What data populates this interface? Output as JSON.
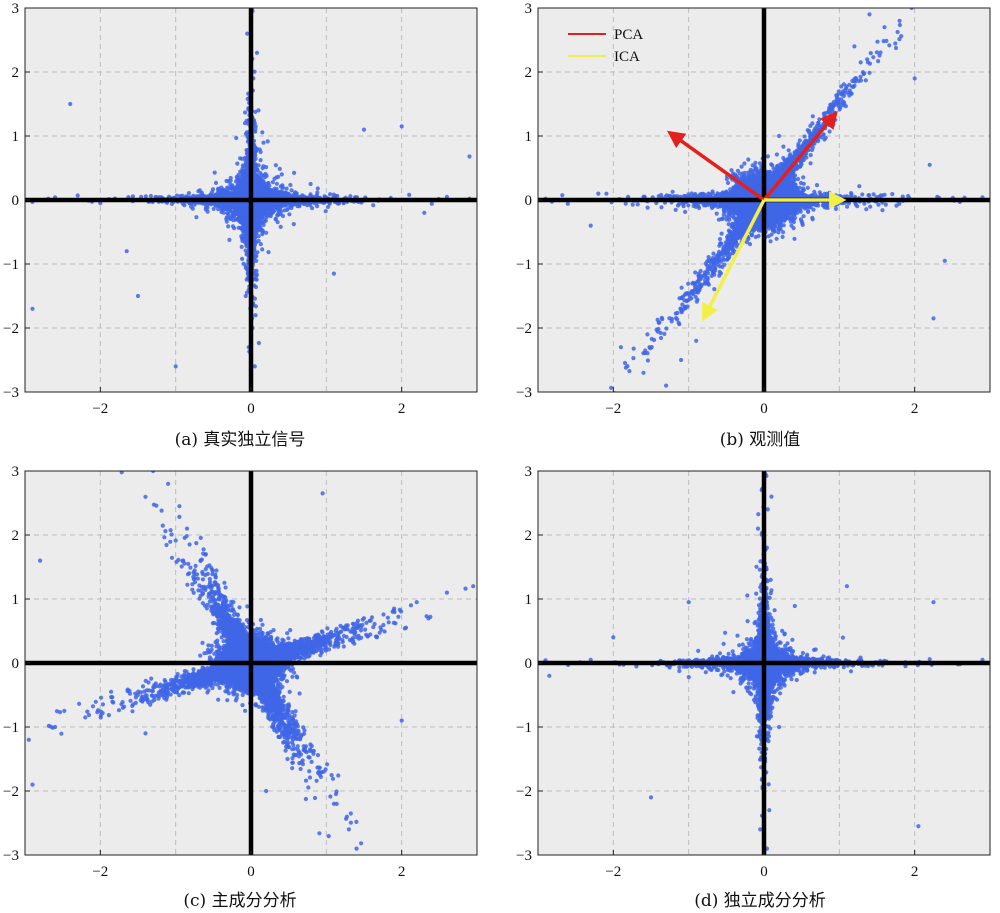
{
  "chart_data": [
    {
      "id": "a",
      "type": "scatter",
      "caption": "(a) 真实独立信号",
      "xlim": [
        -3,
        3
      ],
      "ylim": [
        -3,
        3
      ],
      "xticks": [
        -2,
        0,
        2
      ],
      "yticks": [
        -3,
        -2,
        -1,
        0,
        1,
        2,
        3
      ],
      "grid": true,
      "pattern": "independent-axes",
      "arms": [],
      "points": [
        [
          0.02,
          2.95
        ],
        [
          -0.05,
          2.6
        ],
        [
          0.08,
          2.3
        ],
        [
          0.03,
          1.9
        ],
        [
          -0.02,
          1.6
        ],
        [
          0.1,
          1.4
        ],
        [
          -0.08,
          1.2
        ],
        [
          0.05,
          -2.6
        ],
        [
          -0.03,
          -2.3
        ],
        [
          0.02,
          -2.0
        ],
        [
          0.06,
          -1.8
        ],
        [
          -0.07,
          -1.5
        ],
        [
          2.6,
          0.05
        ],
        [
          2.9,
          0.02
        ],
        [
          2.4,
          -0.06
        ],
        [
          2.1,
          0.08
        ],
        [
          -2.6,
          0.04
        ],
        [
          -2.9,
          -0.03
        ],
        [
          -2.3,
          0.07
        ],
        [
          -2.0,
          -0.05
        ],
        [
          -2.4,
          1.5
        ],
        [
          -2.9,
          -1.7
        ],
        [
          2.9,
          0.68
        ],
        [
          2.0,
          1.15
        ],
        [
          1.5,
          1.1
        ],
        [
          -1.5,
          -1.5
        ],
        [
          -1.0,
          -2.6
        ],
        [
          1.1,
          -1.15
        ],
        [
          -1.65,
          -0.8
        ],
        [
          2.3,
          -0.2
        ]
      ],
      "colors": {
        "points": "#3f66e6",
        "axes_lines": "#000000",
        "background": "#ececec",
        "grid": "#bdbdbd"
      }
    },
    {
      "id": "b",
      "type": "scatter",
      "caption": "(b) 观测值",
      "xlim": [
        -3,
        3
      ],
      "ylim": [
        -3,
        3
      ],
      "xticks": [
        -2,
        0,
        2
      ],
      "yticks": [
        -3,
        -2,
        -1,
        0,
        1,
        2,
        3
      ],
      "grid": true,
      "pattern": "observed-mix",
      "arms": [
        [
          1.0,
          1.5
        ],
        [
          1.0,
          0.0
        ]
      ],
      "points": [
        [
          1.4,
          2.9
        ],
        [
          1.6,
          2.7
        ],
        [
          1.2,
          2.4
        ],
        [
          1.8,
          2.8
        ],
        [
          -1.3,
          -2.9
        ],
        [
          -1.6,
          -2.7
        ],
        [
          -1.1,
          -2.5
        ],
        [
          -0.9,
          -2.2
        ],
        [
          -1.9,
          -2.3
        ],
        [
          2.3,
          0.05
        ],
        [
          2.6,
          -0.03
        ],
        [
          2.9,
          0.04
        ],
        [
          2.2,
          0.55
        ],
        [
          2.4,
          -0.95
        ],
        [
          2.25,
          -1.85
        ],
        [
          -1.6,
          0.05
        ],
        [
          -2.2,
          0.1
        ],
        [
          -2.9,
          0.02
        ],
        [
          -2.3,
          -0.4
        ],
        [
          0.2,
          1.0
        ],
        [
          2.0,
          1.9
        ],
        [
          0.8,
          1.3
        ]
      ],
      "vectors": {
        "PCA": [
          [
            0.95,
            1.35
          ],
          [
            -1.25,
            1.05
          ]
        ],
        "ICA": [
          [
            1.05,
            0.0
          ],
          [
            -0.8,
            -1.85
          ]
        ]
      },
      "legend": {
        "location": "top-left",
        "entries": [
          {
            "name": "PCA",
            "color": "#e3201b"
          },
          {
            "name": "ICA",
            "color": "#f2f046"
          }
        ]
      },
      "colors": {
        "points": "#3f66e6",
        "axes_lines": "#000000",
        "background": "#ececec",
        "grid": "#bdbdbd"
      }
    },
    {
      "id": "c",
      "type": "scatter",
      "caption": "(c) 主成分分析",
      "xlim": [
        -3,
        3
      ],
      "ylim": [
        -3,
        3
      ],
      "xticks": [
        -2,
        0,
        2
      ],
      "yticks": [
        -3,
        -2,
        -1,
        0,
        1,
        2,
        3
      ],
      "grid": true,
      "pattern": "pca-rotated",
      "arms": [
        [
          -0.4,
          1.0
        ],
        [
          1.0,
          0.3
        ],
        [
          0.55,
          -1.0
        ],
        [
          -1.0,
          -0.4
        ]
      ],
      "points": [
        [
          -1.3,
          3.0
        ],
        [
          -1.1,
          2.8
        ],
        [
          -0.95,
          2.45
        ],
        [
          -0.85,
          2.1
        ],
        [
          -0.6,
          1.7
        ],
        [
          2.95,
          1.2
        ],
        [
          2.6,
          1.1
        ],
        [
          2.2,
          0.95
        ],
        [
          1.9,
          0.85
        ],
        [
          1.5,
          0.7
        ],
        [
          0.9,
          -1.7
        ],
        [
          1.1,
          -2.2
        ],
        [
          1.3,
          -2.6
        ],
        [
          1.4,
          -2.9
        ],
        [
          0.7,
          -1.3
        ],
        [
          -2.95,
          -1.2
        ],
        [
          -2.6,
          -1.0
        ],
        [
          -2.2,
          -0.85
        ],
        [
          -1.7,
          -0.7
        ],
        [
          -2.9,
          -1.9
        ],
        [
          -2.8,
          1.6
        ],
        [
          -1.4,
          -1.1
        ],
        [
          0.95,
          2.65
        ],
        [
          -0.9,
          1.6
        ],
        [
          0.2,
          -2.0
        ],
        [
          2.0,
          -0.9
        ]
      ],
      "colors": {
        "points": "#3f66e6",
        "axes_lines": "#000000",
        "background": "#ececec",
        "grid": "#bdbdbd"
      }
    },
    {
      "id": "d",
      "type": "scatter",
      "caption": "(d) 独立成分分析",
      "xlim": [
        -3,
        3
      ],
      "ylim": [
        -3,
        3
      ],
      "xticks": [
        -2,
        0,
        2
      ],
      "yticks": [
        -3,
        -2,
        -1,
        0,
        1,
        2,
        3
      ],
      "grid": true,
      "pattern": "independent-axes",
      "arms": [],
      "points": [
        [
          0.02,
          2.95
        ],
        [
          -0.03,
          2.7
        ],
        [
          0.05,
          2.4
        ],
        [
          0.1,
          2.6
        ],
        [
          -0.08,
          2.1
        ],
        [
          0.04,
          -2.9
        ],
        [
          -0.05,
          -2.6
        ],
        [
          0.07,
          -2.3
        ],
        [
          0.0,
          -2.05
        ],
        [
          2.9,
          0.05
        ],
        [
          2.6,
          -0.02
        ],
        [
          2.2,
          0.06
        ],
        [
          -2.9,
          0.04
        ],
        [
          -2.6,
          -0.03
        ],
        [
          -2.3,
          0.05
        ],
        [
          -2.0,
          0.4
        ],
        [
          2.25,
          0.95
        ],
        [
          1.1,
          1.2
        ],
        [
          -1.0,
          0.95
        ],
        [
          -1.5,
          -2.1
        ],
        [
          2.05,
          -2.55
        ],
        [
          0.2,
          -1.0
        ],
        [
          -2.85,
          -0.2
        ]
      ],
      "colors": {
        "points": "#3f66e6",
        "axes_lines": "#000000",
        "background": "#ececec",
        "grid": "#bdbdbd"
      }
    }
  ]
}
